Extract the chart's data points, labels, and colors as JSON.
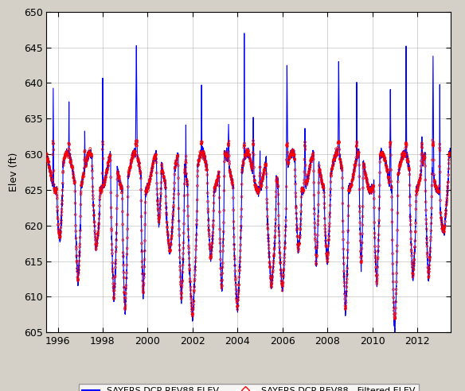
{
  "title": "",
  "ylabel": "Elev (ft)",
  "xlabel": "",
  "xlim": [
    1995.5,
    2013.5
  ],
  "ylim": [
    605,
    650
  ],
  "yticks": [
    605,
    610,
    615,
    620,
    625,
    630,
    635,
    640,
    645,
    650
  ],
  "xticks": [
    1996,
    1998,
    2000,
    2002,
    2004,
    2006,
    2008,
    2010,
    2012
  ],
  "line_color": "#0000FF",
  "scatter_color": "#FF0000",
  "background_color": "#D4D0C8",
  "plot_bg_color": "#FFFFFF",
  "grid_color": "#AAAAAA",
  "legend_line_label": "SAYERS DCP-REV88 ELEV",
  "legend_scatter_label": "SAYERS DCP-REV88 - Filtered ELEV",
  "seed": 42,
  "n_points": 6500
}
